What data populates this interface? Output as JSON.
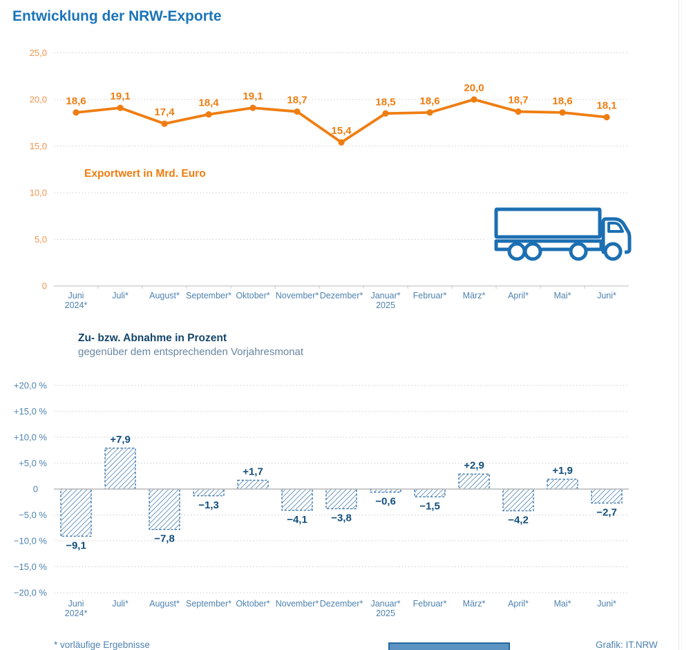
{
  "page": {
    "title": "Entwicklung der NRW-Exporte"
  },
  "colors": {
    "title_blue": "#1b74b8",
    "axis_blue": "#4d82b0",
    "orange": "#ef7d11",
    "orange_light": "#f2944c",
    "bar_blue": "#2f6ea6",
    "label_navy": "#124e7d",
    "grid_gray": "#cdcdcd",
    "zero_gray": "#b9b9b9",
    "truck_blue": "#1c6fb2"
  },
  "months": {
    "line1": [
      "Juni",
      "Juli*",
      "August*",
      "September*",
      "Oktober*",
      "November*",
      "Dezember*",
      "Januar*",
      "Februar*",
      "März*",
      "April*",
      "Mai*",
      "Juni*"
    ],
    "line2": [
      "2024*",
      "",
      "",
      "",
      "",
      "",
      "",
      "2025",
      "",
      "",
      "",
      "",
      ""
    ]
  },
  "chart_data": [
    {
      "type": "line",
      "title": "Exportwert in Mrd. Euro",
      "categories": [
        "Juni 2024*",
        "Juli*",
        "August*",
        "September*",
        "Oktober*",
        "November*",
        "Dezember*",
        "Januar* 2025",
        "Februar*",
        "März*",
        "April*",
        "Mai*",
        "Juni*"
      ],
      "values": [
        18.6,
        19.1,
        17.4,
        18.4,
        19.1,
        18.7,
        15.4,
        18.5,
        18.6,
        20.0,
        18.7,
        18.6,
        18.1
      ],
      "value_labels": [
        "18,6",
        "19,1",
        "17,4",
        "18,4",
        "19,1",
        "18,7",
        "15,4",
        "18,5",
        "18,6",
        "20,0",
        "18,7",
        "18,6",
        "18,1"
      ],
      "xlabel": "",
      "ylabel": "Exportwert in Mrd. Euro",
      "ylim": [
        0,
        25
      ],
      "yticks": [
        0,
        5,
        10,
        15,
        20,
        25
      ],
      "ytick_labels": [
        "0",
        "5,0",
        "10,0",
        "15,0",
        "20,0",
        "25,0"
      ],
      "grid": true,
      "legend_position": "none"
    },
    {
      "type": "bar",
      "title": "Zu- bzw. Abnahme in Prozent",
      "subtitle": "gegenüber dem entsprechenden Vorjahresmonat",
      "categories": [
        "Juni 2024*",
        "Juli*",
        "August*",
        "September*",
        "Oktober*",
        "November*",
        "Dezember*",
        "Januar* 2025",
        "Februar*",
        "März*",
        "April*",
        "Mai*",
        "Juni*"
      ],
      "values": [
        -9.1,
        7.9,
        -7.8,
        -1.3,
        1.7,
        -4.1,
        -3.8,
        -0.6,
        -1.5,
        2.9,
        -4.2,
        1.9,
        -2.7
      ],
      "value_labels": [
        "−9,1",
        "+7,9",
        "−7,8",
        "−1,3",
        "+1,7",
        "−4,1",
        "−3,8",
        "−0,6",
        "−1,5",
        "+2,9",
        "−4,2",
        "+1,9",
        "−2,7"
      ],
      "xlabel": "",
      "ylabel": "Zu- bzw. Abnahme in Prozent",
      "ylim": [
        -20,
        20
      ],
      "yticks": [
        20,
        15,
        10,
        5,
        0,
        -5,
        -10,
        -15,
        -20
      ],
      "ytick_labels": [
        "+20,0 %",
        "+15,0 %",
        "+10,0 %",
        "+5,0 %",
        "0",
        "−5,0 %",
        "−10,0 %",
        "−15,0 %",
        "−20,0 %"
      ],
      "bar_style": "diagonal-hatch",
      "grid": true,
      "legend_position": "none"
    }
  ],
  "footer": {
    "note": "* vorläufige Ergebnisse",
    "credit": "Grafik: IT.NRW"
  }
}
